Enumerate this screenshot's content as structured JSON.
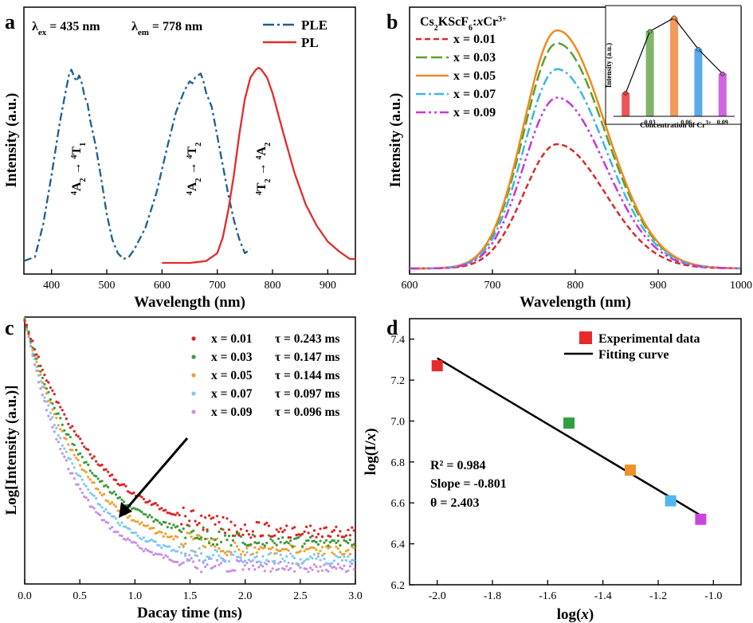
{
  "chart_data": [
    {
      "panel": "a",
      "type": "line",
      "xlabel": "Wavelength (nm)",
      "ylabel": "Intensity (a.u.)",
      "xlim": [
        350,
        950
      ],
      "xticks": [
        "400",
        "500",
        "600",
        "700",
        "800",
        "900"
      ],
      "annotation_ex": "λex = 435 nm",
      "annotation_em": "λem = 778 nm",
      "transitions": [
        "4A2 → 4T1",
        "4A2 → 4T2",
        "4T2 → 4A2"
      ],
      "series": [
        {
          "name": "PLE",
          "color": "#1f5f8f",
          "style": "dashdot",
          "x": [
            350,
            370,
            385,
            400,
            415,
            425,
            432,
            436,
            440,
            445,
            450,
            455,
            460,
            465,
            470,
            480,
            490,
            500,
            510,
            520,
            530,
            540,
            550,
            570,
            590,
            610,
            625,
            640,
            650,
            655,
            660,
            665,
            670,
            675,
            680,
            690,
            700,
            710,
            720,
            730,
            740,
            750,
            760
          ],
          "y": [
            0.01,
            0.03,
            0.2,
            0.45,
            0.72,
            0.87,
            0.97,
            0.99,
            0.96,
            0.93,
            0.96,
            0.92,
            0.85,
            0.82,
            0.73,
            0.6,
            0.43,
            0.25,
            0.12,
            0.05,
            0.02,
            0.03,
            0.07,
            0.18,
            0.36,
            0.6,
            0.77,
            0.88,
            0.93,
            0.92,
            0.95,
            0.96,
            0.97,
            0.93,
            0.87,
            0.8,
            0.65,
            0.5,
            0.35,
            0.22,
            0.12,
            0.05,
            0.07
          ]
        },
        {
          "name": "PL",
          "color": "#e32b2b",
          "style": "solid",
          "x": [
            600,
            650,
            680,
            700,
            710,
            720,
            730,
            740,
            750,
            760,
            770,
            775,
            780,
            790,
            800,
            820,
            840,
            860,
            880,
            900,
            920,
            940,
            950
          ],
          "y": [
            0,
            0,
            0.01,
            0.05,
            0.13,
            0.27,
            0.45,
            0.66,
            0.84,
            0.95,
            0.99,
            1.0,
            0.99,
            0.95,
            0.87,
            0.66,
            0.46,
            0.3,
            0.19,
            0.11,
            0.06,
            0.02,
            0.02
          ]
        }
      ]
    },
    {
      "panel": "b",
      "type": "line",
      "title": "Cs2KScF6:xCr3+",
      "xlabel": "Wavelength (nm)",
      "ylabel": "Intensity (a.u.)",
      "xlim": [
        600,
        1000
      ],
      "xticks": [
        "600",
        "700",
        "800",
        "900",
        "1000"
      ],
      "series": [
        {
          "name": "x = 0.01",
          "color": "#d62a2a",
          "peak": 0.48
        },
        {
          "name": "x = 0.03",
          "color": "#5aa02c",
          "peak": 0.87
        },
        {
          "name": "x = 0.05",
          "color": "#f08a1d",
          "peak": 0.92
        },
        {
          "name": "x = 0.07",
          "color": "#3fb3e8",
          "peak": 0.77
        },
        {
          "name": "x = 0.09",
          "color": "#cc33dd",
          "peak": 0.66
        }
      ],
      "inset": {
        "type": "bar",
        "xlabel": "Concentration of Cr3+",
        "ylabel": "Intensity (a.u.)",
        "xticks": [
          "0.03",
          "0.06",
          "0.09"
        ],
        "x": [
          0.01,
          0.03,
          0.05,
          0.07,
          0.09
        ],
        "values": [
          0.52,
          1.9,
          2.2,
          1.5,
          0.95
        ],
        "colors": [
          "#e8383d",
          "#6aa84f",
          "#f08a3e",
          "#3d9be9",
          "#c84ad8"
        ]
      }
    },
    {
      "panel": "c",
      "type": "scatter",
      "xlabel": "Dacay time (ms)",
      "ylabel": "Log[Intensity (a.u.)]",
      "xlim": [
        0,
        3.0
      ],
      "xticks": [
        "0.0",
        "0.5",
        "1.0",
        "1.5",
        "2.0",
        "2.5",
        "3.0"
      ],
      "series": [
        {
          "name": "x = 0.01",
          "tau": "τ = 0.243 ms",
          "color": "#e02020"
        },
        {
          "name": "x = 0.03",
          "tau": "τ = 0.147 ms",
          "color": "#3a9a3a"
        },
        {
          "name": "x = 0.05",
          "tau": "τ = 0.144 ms",
          "color": "#f0a030"
        },
        {
          "name": "x = 0.07",
          "tau": "τ = 0.097 ms",
          "color": "#7fc8f0"
        },
        {
          "name": "x = 0.09",
          "tau": "τ = 0.096 ms",
          "color": "#c98ee8"
        }
      ]
    },
    {
      "panel": "d",
      "type": "scatter",
      "xlabel": "log(x)",
      "ylabel": "log(I/x)",
      "xlim": [
        -2.1,
        -0.9
      ],
      "ylim": [
        6.2,
        7.5
      ],
      "xticks": [
        "-2.0",
        "-1.8",
        "-1.6",
        "-1.4",
        "-1.2",
        "-1.0"
      ],
      "yticks": [
        "6.2",
        "6.4",
        "6.6",
        "6.8",
        "7.0",
        "7.2",
        "7.4"
      ],
      "points": {
        "x": [
          -2.0,
          -1.523,
          -1.301,
          -1.155,
          -1.046
        ],
        "y": [
          7.27,
          6.99,
          6.76,
          6.61,
          6.52
        ],
        "colors": [
          "#e82a2a",
          "#2ea043",
          "#f0902a",
          "#4fb8ea",
          "#cc44e0"
        ]
      },
      "fit": {
        "x": [
          -2.0,
          -1.046
        ],
        "y": [
          7.307,
          6.539
        ]
      },
      "legend": [
        "Experimental data",
        "Fitting curve"
      ],
      "stats": {
        "r2": "R² = 0.984",
        "slope": "Slope = -0.801",
        "theta": "θ = 2.403"
      }
    }
  ],
  "panel_letters": [
    "a",
    "b",
    "c",
    "d"
  ]
}
